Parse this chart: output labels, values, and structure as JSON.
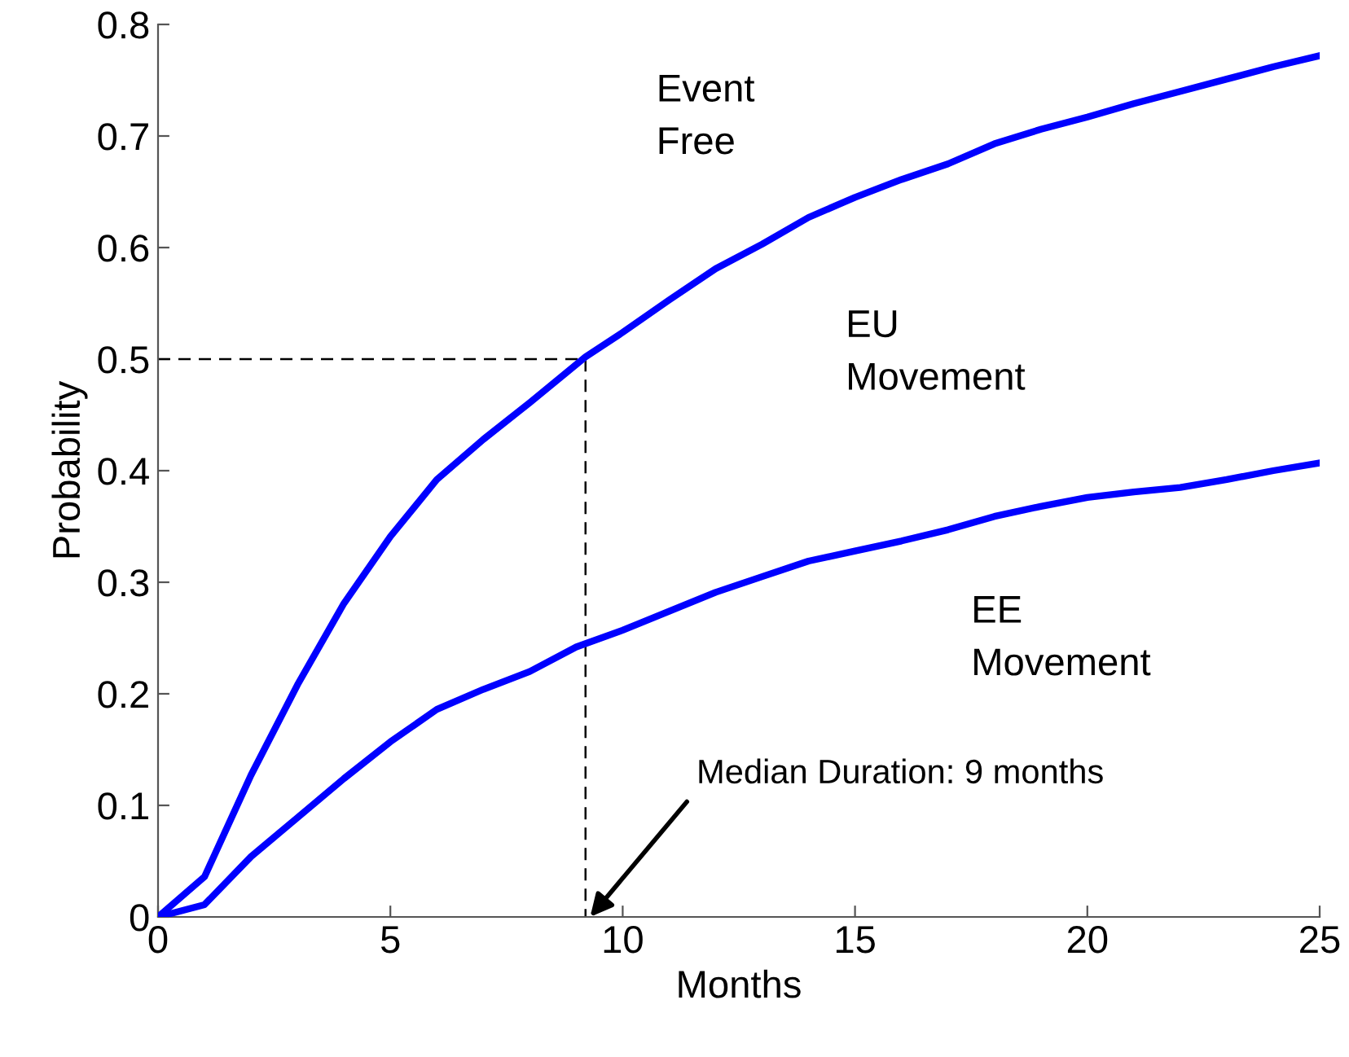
{
  "chart_data": {
    "type": "line",
    "xlabel": "Months",
    "ylabel": "Probability",
    "xlim": [
      0,
      25
    ],
    "ylim": [
      0,
      0.8
    ],
    "xticks": [
      0,
      5,
      10,
      15,
      20,
      25
    ],
    "yticks": [
      0,
      0.1,
      0.2,
      0.3,
      0.4,
      0.5,
      0.6,
      0.7,
      0.8
    ],
    "grid": false,
    "legend": false,
    "marker": "none",
    "series": [
      {
        "color": "#0000ff",
        "line_style": "solid",
        "x": [
          0,
          1,
          2,
          3,
          4,
          5,
          6,
          7,
          8,
          9.2,
          10,
          11,
          12,
          13,
          14,
          15,
          16,
          17,
          18,
          19,
          20,
          21,
          22,
          23,
          24,
          25
        ],
        "values": [
          0,
          0.036,
          0.127,
          0.208,
          0.281,
          0.341,
          0.392,
          0.428,
          0.461,
          0.502,
          0.524,
          0.553,
          0.581,
          0.603,
          0.627,
          0.645,
          0.661,
          0.675,
          0.693,
          0.706,
          0.717,
          0.729,
          0.74,
          0.751,
          0.762,
          0.772
        ]
      },
      {
        "color": "#0000ff",
        "line_style": "solid",
        "x": [
          0,
          1,
          2,
          3,
          4,
          5,
          6,
          7,
          8,
          9,
          10,
          11,
          12,
          13,
          14,
          15,
          16,
          17,
          18,
          19,
          20,
          21,
          22,
          23,
          24,
          25
        ],
        "values": [
          0,
          0.011,
          0.054,
          0.089,
          0.124,
          0.157,
          0.186,
          0.204,
          0.22,
          0.242,
          0.257,
          0.274,
          0.291,
          0.305,
          0.319,
          0.328,
          0.337,
          0.347,
          0.359,
          0.368,
          0.376,
          0.381,
          0.385,
          0.392,
          0.4,
          0.407
        ]
      },
      {
        "color": "#000000",
        "line_style": "dashed",
        "x": [
          0,
          9.2,
          9.2
        ],
        "values": [
          0.5,
          0.5,
          0
        ]
      }
    ],
    "annotations": [
      "Event\nFree",
      "EU\nMovement",
      "EE\nMovement",
      {
        "text": "Median Duration: 9 months",
        "x": 9.3,
        "y": 0
      }
    ]
  }
}
